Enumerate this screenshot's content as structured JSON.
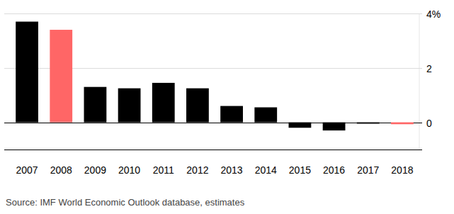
{
  "chart_data": {
    "type": "bar",
    "categories": [
      "2007",
      "2008",
      "2009",
      "2010",
      "2011",
      "2012",
      "2013",
      "2014",
      "2015",
      "2016",
      "2017",
      "2018"
    ],
    "values": [
      3.7,
      3.4,
      1.3,
      1.25,
      1.45,
      1.25,
      0.6,
      0.55,
      -0.2,
      -0.3,
      -0.05,
      -0.07
    ],
    "colors": [
      "#000000",
      "#ff6666",
      "#000000",
      "#000000",
      "#000000",
      "#000000",
      "#000000",
      "#000000",
      "#000000",
      "#000000",
      "#000000",
      "#ff6666"
    ],
    "ylim": [
      -1,
      4
    ],
    "yticks": [
      0,
      2,
      {
        "value": 4,
        "label": "4%"
      }
    ],
    "grid": true,
    "source": "Source: IMF World Economic Outlook database, estimates"
  }
}
